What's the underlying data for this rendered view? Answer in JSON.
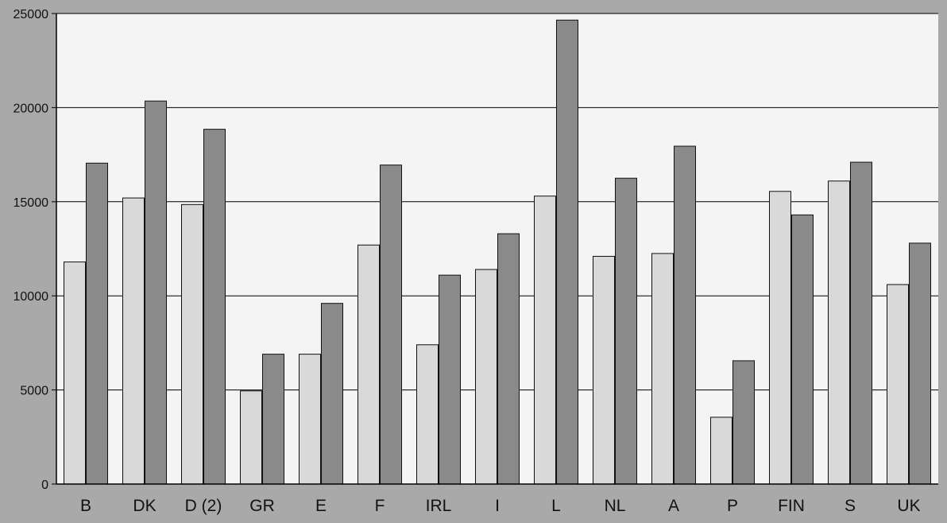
{
  "chart_data": {
    "type": "bar",
    "categories": [
      "B",
      "DK",
      "D (2)",
      "GR",
      "E",
      "F",
      "IRL",
      "I",
      "L",
      "NL",
      "A",
      "P",
      "FIN",
      "S",
      "UK"
    ],
    "series": [
      {
        "color": "#d9d9d9",
        "values": [
          11800,
          15200,
          14850,
          4950,
          6900,
          12700,
          7400,
          11400,
          15300,
          12100,
          12250,
          3550,
          15550,
          16100,
          10600
        ]
      },
      {
        "color": "#8a8a8a",
        "values": [
          17050,
          20350,
          18850,
          6900,
          9600,
          16950,
          11100,
          13300,
          24650,
          16250,
          17950,
          6550,
          14300,
          17100,
          12800
        ]
      }
    ],
    "yticks": [
      "0",
      "5000",
      "10000",
      "15000",
      "20000",
      "25000"
    ],
    "ylim": [
      0,
      25000
    ],
    "grid": true,
    "legend": "none",
    "colors": {
      "plot_background": "#f4f4f4",
      "page_background": "#a9a9a9",
      "gridline": "#000000"
    }
  }
}
